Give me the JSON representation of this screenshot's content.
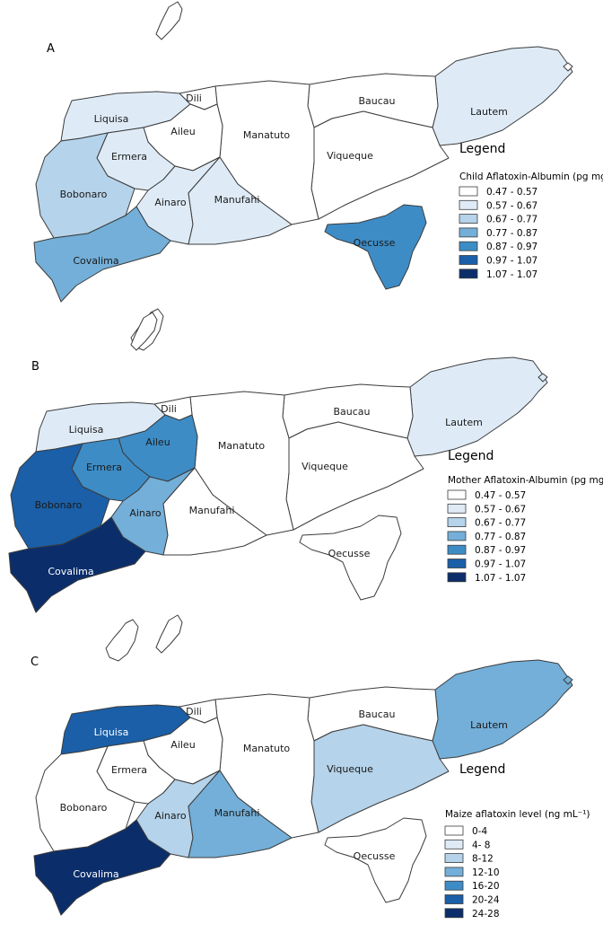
{
  "palette": [
    "#ffffff",
    "#deebf7",
    "#b5d3ea",
    "#73afd8",
    "#3d8cc6",
    "#1a5fa8",
    "#0b2e6b"
  ],
  "panels": [
    {
      "letter": "A",
      "legend_title": "Legend",
      "legend_subtitle": "Child Aflatoxin-Albumin (pg mg⁻¹)",
      "legend_items": [
        "0.47 - 0.57",
        "0.57 - 0.67",
        "0.67 - 0.77",
        "0.77 - 0.87",
        "0.87 - 0.97",
        "0.97 - 1.07",
        "1.07 - 1.07"
      ],
      "districts": {
        "Lautem": 1,
        "Baucau": 0,
        "Viqueque": 0,
        "Manatuto": 0,
        "Dili": 0,
        "Liquisa": 1,
        "Aileu": 0,
        "Ermera": 1,
        "Bobonaro": 2,
        "Ainaro": 1,
        "Manufahi": 1,
        "Covalima": 3,
        "Oecusse": 4,
        "Atauro": 0,
        "Jaco": 0
      }
    },
    {
      "letter": "B",
      "legend_title": "Legend",
      "legend_subtitle": "Mother Aflatoxin-Albumin (pg mg⁻¹)",
      "legend_items": [
        "0.47 - 0.57",
        "0.57 - 0.67",
        "0.67 - 0.77",
        "0.77 - 0.87",
        "0.87 - 0.97",
        "0.97 - 1.07",
        "1.07 - 1.07"
      ],
      "districts": {
        "Lautem": 1,
        "Baucau": 0,
        "Viqueque": 0,
        "Manatuto": 0,
        "Dili": 0,
        "Liquisa": 1,
        "Aileu": 4,
        "Ermera": 4,
        "Bobonaro": 5,
        "Ainaro": 3,
        "Manufahi": 0,
        "Covalima": 6,
        "Oecusse": 0,
        "Atauro": 0,
        "Jaco": 1
      }
    },
    {
      "letter": "C",
      "legend_title": "Legend",
      "legend_subtitle": "Maize aflatoxin level (ng mL⁻¹)",
      "legend_items": [
        "0-4",
        "4- 8",
        "8-12",
        "12-10",
        "16-20",
        "20-24",
        "24-28"
      ],
      "districts": {
        "Lautem": 3,
        "Baucau": 0,
        "Viqueque": 2,
        "Manatuto": 0,
        "Dili": 0,
        "Liquisa": 5,
        "Aileu": 0,
        "Ermera": 0,
        "Bobonaro": 0,
        "Ainaro": 2,
        "Manufahi": 3,
        "Covalima": 6,
        "Oecusse": 0,
        "Atauro": 0,
        "Jaco": 3
      }
    }
  ]
}
